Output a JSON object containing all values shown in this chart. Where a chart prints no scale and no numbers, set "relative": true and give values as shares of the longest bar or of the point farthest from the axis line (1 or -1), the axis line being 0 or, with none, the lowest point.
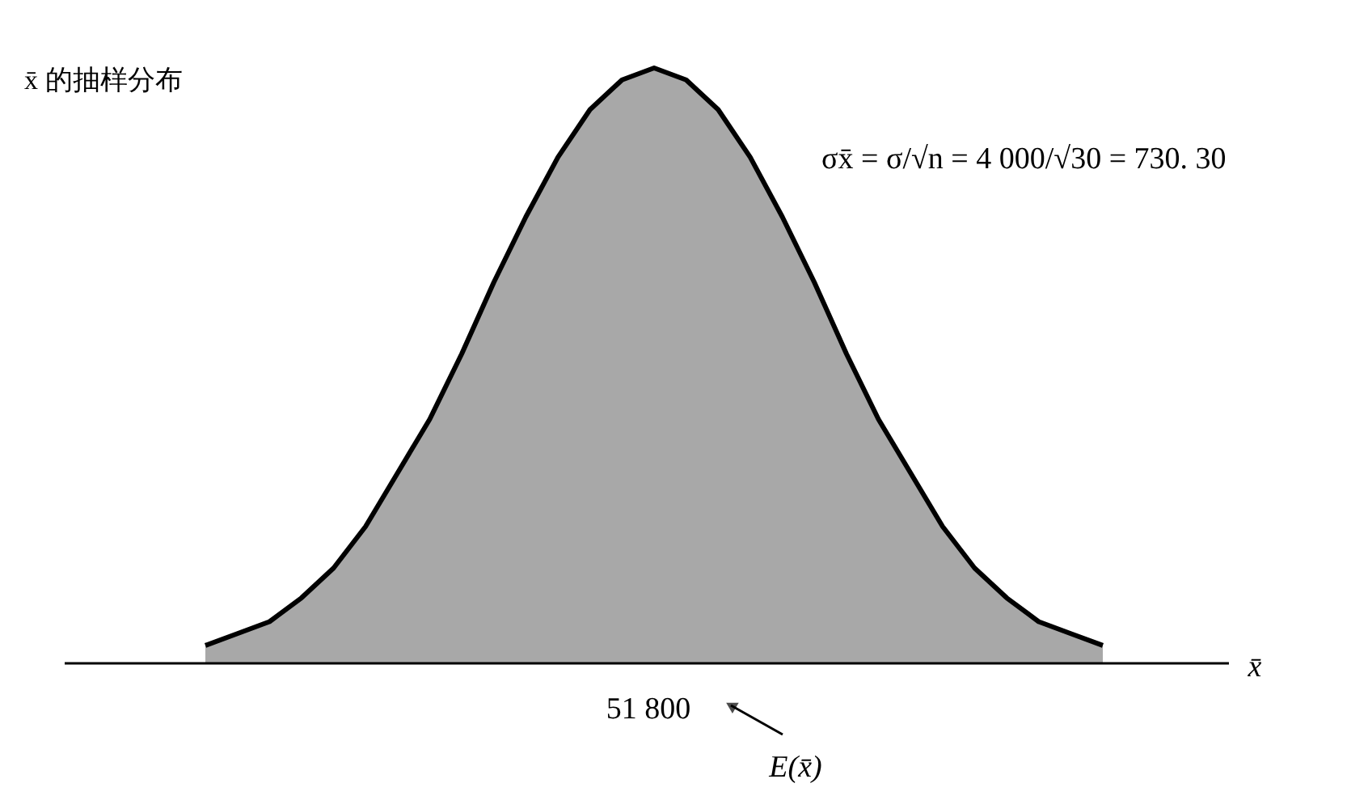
{
  "chart_data": {
    "type": "area",
    "relative": true,
    "ylabel": "x̄ 的抽样分布",
    "xlabel": "x̄",
    "color": "#a8a8a8",
    "categories": [
      null,
      null,
      null,
      null,
      null,
      null,
      null,
      null,
      null,
      null,
      null,
      null,
      null,
      null,
      null,
      null,
      null,
      null,
      null,
      null,
      null,
      null,
      null,
      null,
      null,
      null,
      null,
      null,
      null
    ],
    "values": [
      0.03,
      0.05,
      0.07,
      0.11,
      0.16,
      0.23,
      0.32,
      0.41,
      0.52,
      0.64,
      0.75,
      0.85,
      0.93,
      0.98,
      1,
      0.98,
      0.93,
      0.85,
      0.75,
      0.64,
      0.52,
      0.41,
      0.32,
      0.23,
      0.16,
      0.11,
      0.07,
      0.05,
      0.03
    ],
    "annotations": [
      "51 800",
      "E(x̄)",
      "σx̄ = σ/√n = 4 000/√30 = 730. 30"
    ]
  }
}
